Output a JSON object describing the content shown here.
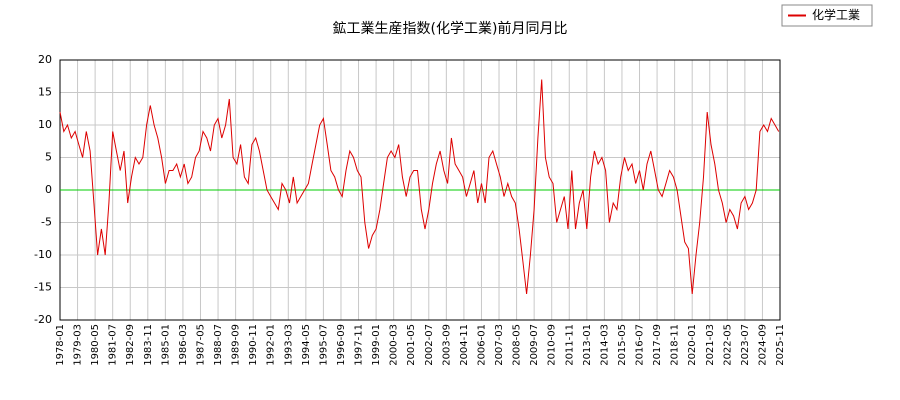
{
  "chart_data": {
    "type": "line",
    "title": "鉱工業生産指数(化学工業)前月同月比",
    "x": [
      "1978-01",
      "1978-04",
      "1978-07",
      "1978-10",
      "1979-01",
      "1979-04",
      "1979-07",
      "1979-10",
      "1980-01",
      "1980-04",
      "1980-07",
      "1980-10",
      "1981-01",
      "1981-04",
      "1981-07",
      "1981-10",
      "1982-01",
      "1982-04",
      "1982-07",
      "1982-10",
      "1983-01",
      "1983-04",
      "1983-07",
      "1983-10",
      "1984-01",
      "1984-04",
      "1984-07",
      "1984-10",
      "1985-01",
      "1985-04",
      "1985-07",
      "1985-10",
      "1986-01",
      "1986-04",
      "1986-07",
      "1986-10",
      "1987-01",
      "1987-04",
      "1987-07",
      "1987-10",
      "1988-01",
      "1988-04",
      "1988-07",
      "1988-10",
      "1989-01",
      "1989-04",
      "1989-07",
      "1989-10",
      "1990-01",
      "1990-04",
      "1990-07",
      "1990-10",
      "1991-01",
      "1991-04",
      "1991-07",
      "1991-10",
      "1992-01",
      "1992-04",
      "1992-07",
      "1992-10",
      "1993-01",
      "1993-04",
      "1993-07",
      "1993-10",
      "1994-01",
      "1994-04",
      "1994-07",
      "1994-10",
      "1995-01",
      "1995-04",
      "1995-07",
      "1995-10",
      "1996-01",
      "1996-04",
      "1996-07",
      "1996-10",
      "1997-01",
      "1997-04",
      "1997-07",
      "1997-10",
      "1998-01",
      "1998-04",
      "1998-07",
      "1998-10",
      "1999-01",
      "1999-04",
      "1999-07",
      "1999-10",
      "2000-01",
      "2000-04",
      "2000-07",
      "2000-10",
      "2001-01",
      "2001-04",
      "2001-07",
      "2001-10",
      "2002-01",
      "2002-04",
      "2002-07",
      "2002-10",
      "2003-01",
      "2003-04",
      "2003-07",
      "2003-10",
      "2004-01",
      "2004-04",
      "2004-07",
      "2004-10",
      "2005-01",
      "2005-04",
      "2005-07",
      "2005-10",
      "2006-01",
      "2006-04",
      "2006-07",
      "2006-10",
      "2007-01",
      "2007-04",
      "2007-07",
      "2007-10",
      "2008-01",
      "2008-04",
      "2008-07",
      "2008-10",
      "2009-01",
      "2009-04",
      "2009-07",
      "2009-10",
      "2010-01",
      "2010-04",
      "2010-07",
      "2010-10",
      "2011-01",
      "2011-04",
      "2011-07",
      "2011-10",
      "2012-01",
      "2012-04",
      "2012-07",
      "2012-10",
      "2013-01",
      "2013-04",
      "2013-07",
      "2013-10",
      "2014-01",
      "2014-04",
      "2014-07",
      "2014-10",
      "2015-01",
      "2015-04",
      "2015-07",
      "2015-10",
      "2016-01",
      "2016-04",
      "2016-07",
      "2016-10",
      "2017-01",
      "2017-04",
      "2017-07",
      "2017-10",
      "2018-01",
      "2018-04",
      "2018-07",
      "2018-10",
      "2019-01",
      "2019-04",
      "2019-07",
      "2019-10",
      "2020-01",
      "2020-04",
      "2020-07",
      "2020-10",
      "2021-01",
      "2021-04",
      "2021-07",
      "2021-10",
      "2022-01",
      "2022-04",
      "2022-07",
      "2022-10",
      "2023-01",
      "2023-04",
      "2023-07",
      "2023-10",
      "2024-01",
      "2024-04",
      "2024-07",
      "2024-10",
      "2025-01",
      "2025-04",
      "2025-07",
      "2025-10"
    ],
    "series": [
      {
        "name": "化学工業",
        "color": "#dd0000",
        "values": [
          12,
          9,
          10,
          8,
          9,
          7,
          5,
          9,
          6,
          -2,
          -10,
          -6,
          -10,
          -2,
          9,
          6,
          3,
          6,
          -2,
          2,
          5,
          4,
          5,
          10,
          13,
          10,
          8,
          5,
          1,
          3,
          3,
          4,
          2,
          4,
          1,
          2,
          5,
          6,
          9,
          8,
          6,
          10,
          11,
          8,
          10,
          14,
          5,
          4,
          7,
          2,
          1,
          7,
          8,
          6,
          3,
          0,
          -1,
          -2,
          -3,
          1,
          0,
          -2,
          2,
          -2,
          -1,
          0,
          1,
          4,
          7,
          10,
          11,
          7,
          3,
          2,
          0,
          -1,
          3,
          6,
          5,
          3,
          2,
          -5,
          -9,
          -7,
          -6,
          -3,
          1,
          5,
          6,
          5,
          7,
          2,
          -1,
          2,
          3,
          3,
          -3,
          -6,
          -3,
          1,
          4,
          6,
          3,
          1,
          8,
          4,
          3,
          2,
          -1,
          1,
          3,
          -2,
          1,
          -2,
          5,
          6,
          4,
          2,
          -1,
          1,
          -1,
          -2,
          -6,
          -11,
          -16,
          -10,
          -3,
          8,
          17,
          5,
          2,
          1,
          -5,
          -3,
          -1,
          -6,
          3,
          -6,
          -2,
          0,
          -6,
          2,
          6,
          4,
          5,
          3,
          -5,
          -2,
          -3,
          2,
          5,
          3,
          4,
          1,
          3,
          0,
          4,
          6,
          3,
          0,
          -1,
          1,
          3,
          2,
          0,
          -4,
          -8,
          -9,
          -16,
          -10,
          -5,
          2,
          12,
          7,
          4,
          0,
          -2,
          -5,
          -3,
          -4,
          -6,
          -2,
          -1,
          -3,
          -2,
          0,
          9,
          10,
          9,
          11,
          10,
          9
        ]
      }
    ],
    "xlim": [
      "1978-01",
      "2025-11"
    ],
    "xticks": [
      "1978-01",
      "1979-03",
      "1980-05",
      "1981-07",
      "1982-09",
      "1983-11",
      "1985-01",
      "1986-03",
      "1987-05",
      "1988-07",
      "1989-09",
      "1990-11",
      "1992-01",
      "1993-03",
      "1994-05",
      "1995-07",
      "1996-09",
      "1997-11",
      "1999-01",
      "2000-03",
      "2001-05",
      "2002-07",
      "2003-09",
      "2004-11",
      "2006-01",
      "2007-03",
      "2008-05",
      "2009-07",
      "2010-09",
      "2011-11",
      "2013-01",
      "2014-03",
      "2015-05",
      "2016-07",
      "2017-09",
      "2018-11",
      "2020-01",
      "2021-03",
      "2022-05",
      "2023-07",
      "2024-09",
      "2025-11"
    ],
    "ylim": [
      -20,
      20
    ],
    "yticks": [
      -20,
      -15,
      -10,
      -5,
      0,
      5,
      10,
      15,
      20
    ],
    "grid": true,
    "hline": {
      "value": 0,
      "color": "#00cc00"
    },
    "legend": "upper right"
  }
}
